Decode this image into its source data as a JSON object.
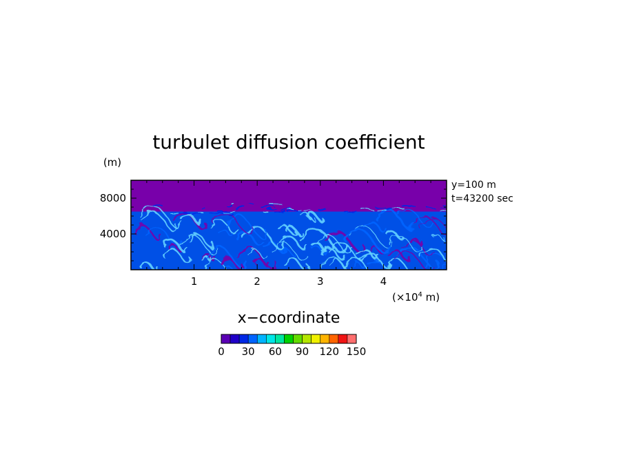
{
  "chart_data": {
    "type": "heatmap",
    "title": "turbulet diffusion coefficient",
    "xlabel": "x−coordinate",
    "x_unit_prefix": "(×10",
    "x_unit_exp": "4",
    "x_unit_suffix": " m)",
    "ylabel": "(m)",
    "annotations": [
      "y=100  m",
      "t=43200  sec"
    ],
    "xlim": [
      0,
      5
    ],
    "ylim": [
      0,
      10000
    ],
    "x_ticks": [
      1,
      2,
      3,
      4
    ],
    "x_tick_labels": [
      "1",
      "2",
      "3",
      "4"
    ],
    "y_ticks": [
      4000,
      8000
    ],
    "y_tick_labels": [
      "4000",
      "8000"
    ],
    "colorbar": {
      "range": [
        0,
        150
      ],
      "tick_values": [
        0,
        30,
        60,
        90,
        120,
        150
      ],
      "tick_labels": [
        "0",
        "30",
        "60",
        "90",
        "120",
        "150"
      ],
      "levels": [
        0,
        10,
        20,
        30,
        40,
        50,
        60,
        70,
        80,
        90,
        100,
        110,
        120,
        130,
        140,
        150
      ],
      "colors": [
        "#5a00b4",
        "#2000c8",
        "#0028e6",
        "#0064ff",
        "#00b4ff",
        "#00e6e6",
        "#00e6a0",
        "#00d200",
        "#64dc00",
        "#b4e600",
        "#f0f000",
        "#ffb400",
        "#ff6400",
        "#f01414",
        "#ff6e6e"
      ]
    },
    "background_value_color": "#7800aa",
    "turbulent_layer_top_m": 6500,
    "turbulent_value_color": "#0050e6",
    "peak_value_color": "#64d2ff"
  }
}
